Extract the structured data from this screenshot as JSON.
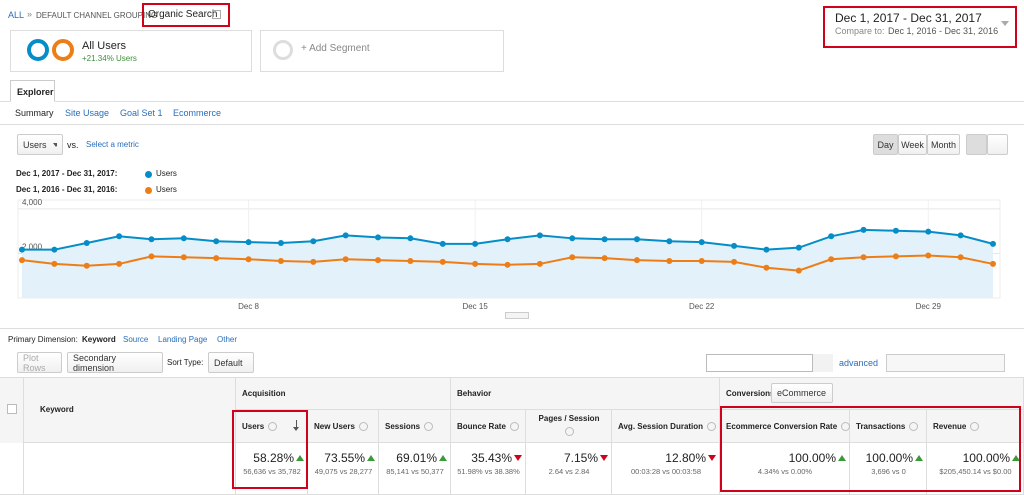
{
  "breadcrumb": {
    "root": "ALL",
    "separator": "»",
    "grouping": "DEFAULT CHANNEL GROUPING",
    "current": "Organic Search"
  },
  "segments": {
    "active": {
      "name": "All Users",
      "note": "+21.34% Users"
    },
    "add": "+ Add Segment"
  },
  "date_range": {
    "current": "Dec 1, 2017 - Dec 31, 2017",
    "compare_label": "Compare to:",
    "compare": "Dec 1, 2016 - Dec 31, 2016"
  },
  "tabs": [
    "Explorer"
  ],
  "subtabs": [
    "Summary",
    "Site Usage",
    "Goal Set 1",
    "Ecommerce"
  ],
  "metric": {
    "selected": "Users",
    "vs": "vs.",
    "select": "Select a metric"
  },
  "periods": [
    "Day",
    "Week",
    "Month"
  ],
  "chart_data": {
    "type": "line",
    "categories": [
      null,
      null,
      null,
      null,
      null,
      null,
      null,
      "Dec 8",
      null,
      null,
      null,
      null,
      null,
      null,
      "Dec 15",
      null,
      null,
      null,
      null,
      null,
      null,
      "Dec 22",
      null,
      null,
      null,
      null,
      null,
      null,
      "Dec 29",
      null,
      null
    ],
    "series": [
      {
        "name": "Users",
        "period": "Dec 1, 2017 - Dec 31, 2017:",
        "color": "#058dc7",
        "values": [
          2170,
          2170,
          2470,
          2770,
          2640,
          2680,
          2550,
          2510,
          2470,
          2550,
          2810,
          2720,
          2680,
          2430,
          2430,
          2640,
          2810,
          2680,
          2640,
          2640,
          2550,
          2510,
          2340,
          2170,
          2260,
          2770,
          3060,
          3020,
          2980,
          2810,
          2430
        ]
      },
      {
        "name": "Users",
        "period": "Dec 1, 2016 - Dec 31, 2016:",
        "color": "#ed7e17",
        "values": [
          1700,
          1530,
          1450,
          1530,
          1870,
          1830,
          1790,
          1740,
          1660,
          1620,
          1740,
          1700,
          1660,
          1620,
          1530,
          1490,
          1530,
          1830,
          1790,
          1700,
          1660,
          1660,
          1620,
          1360,
          1230,
          1740,
          1830,
          1870,
          1910,
          1830,
          1530
        ]
      }
    ],
    "ylim": [
      0,
      4400
    ],
    "yticks": [
      {
        "value": 2000,
        "label": "2,000"
      },
      {
        "value": 4000,
        "label": "4,000"
      }
    ],
    "grid": true,
    "area": true
  },
  "dimension": {
    "label": "Primary Dimension:",
    "options": [
      "Keyword",
      "Source",
      "Landing Page",
      "Other"
    ]
  },
  "toolbar": {
    "plot_rows": "Plot Rows",
    "secondary": "Secondary dimension",
    "sort_label": "Sort Type:",
    "sort": "Default",
    "advanced": "advanced"
  },
  "table": {
    "groups": [
      "Acquisition",
      "Behavior",
      "Conversions"
    ],
    "conversion_select": "eCommerce",
    "columns": [
      "Keyword",
      "Users",
      "New Users",
      "Sessions",
      "Bounce Rate",
      "Pages / Session",
      "Avg. Session Duration",
      "Ecommerce Conversion Rate",
      "Transactions",
      "Revenue"
    ],
    "totals": [
      {
        "value": "58.28%",
        "detail": "56,636 vs 35,782",
        "trend": "good"
      },
      {
        "value": "73.55%",
        "detail": "49,075 vs 28,277",
        "trend": "good"
      },
      {
        "value": "69.01%",
        "detail": "85,141 vs 50,377",
        "trend": "good"
      },
      {
        "value": "35.43%",
        "detail": "51.98% vs 38.38%",
        "trend": "bad"
      },
      {
        "value": "7.15%",
        "detail": "2.64 vs 2.84",
        "trend": "bad"
      },
      {
        "value": "12.80%",
        "detail": "00:03:28 vs 00:03:58",
        "trend": "bad"
      },
      {
        "value": "100.00%",
        "detail": "4.34% vs 0.00%",
        "trend": "good"
      },
      {
        "value": "100.00%",
        "detail": "3,696 vs 0",
        "trend": "good"
      },
      {
        "value": "100.00%",
        "detail": "$205,450.14 vs $0.00",
        "trend": "good"
      }
    ]
  }
}
